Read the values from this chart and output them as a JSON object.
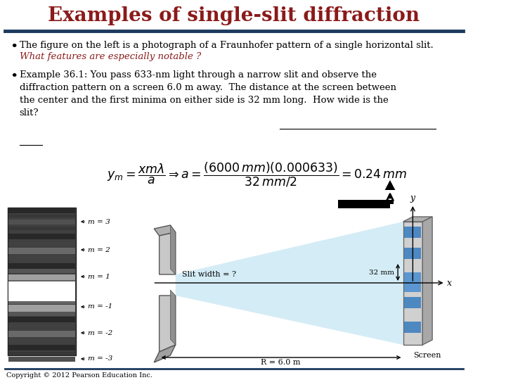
{
  "title": "Examples of single-slit diffraction",
  "title_color": "#8B1A1A",
  "title_fontsize": 20,
  "bg_color": "#FFFFFF",
  "header_line_color": "#1C3A5E",
  "bullet1_black": "The figure on the left is a photograph of a Fraunhofer pattern of a single horizontal slit.",
  "bullet1_red": "What features are especially notable ?",
  "bullet2_text": "Example 36.1: You pass 633-nm light through a narrow slit and observe the\ndiffraction pattern on a screen 6.0 m away.  The distance at the screen between\nthe center and the first minima on either side is 32 mm long.  How wide is the\nslit?",
  "copyright": "Copyright © 2012 Pearson Education Inc.",
  "bottom_line_color": "#1C3A5E",
  "font_family": "serif",
  "m_labels": [
    [
      3,
      "m = 3"
    ],
    [
      2,
      "m = 2"
    ],
    [
      1,
      "m = 1"
    ],
    [
      -1,
      "m = -1"
    ],
    [
      -2,
      "m = -2"
    ],
    [
      -3,
      "m = -3"
    ]
  ]
}
